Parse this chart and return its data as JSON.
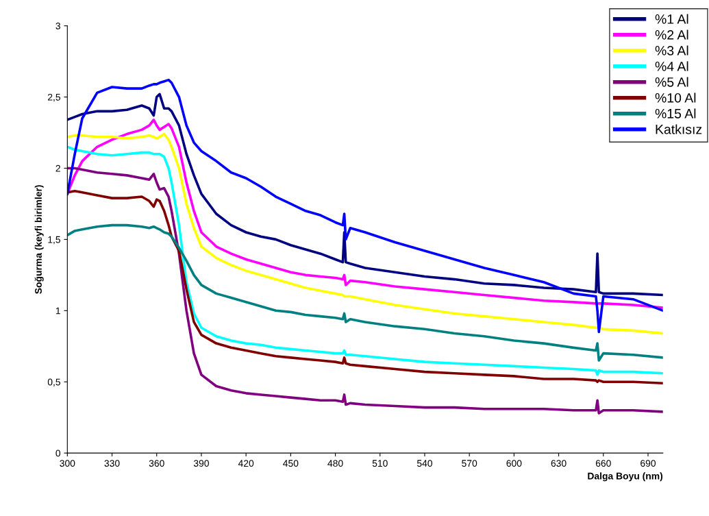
{
  "chart_data": {
    "type": "line",
    "xlabel": "Dalga Boyu (nm)",
    "ylabel": "Soğurma (keyfi birimler)",
    "x": [
      300,
      305,
      310,
      320,
      330,
      340,
      350,
      355,
      358,
      360,
      362,
      365,
      368,
      370,
      375,
      380,
      385,
      390,
      400,
      410,
      420,
      430,
      440,
      450,
      460,
      470,
      480,
      485,
      486,
      487,
      490,
      500,
      520,
      540,
      560,
      580,
      600,
      620,
      640,
      655,
      656,
      657,
      660,
      680,
      700
    ],
    "series": [
      {
        "name": "%1 Al",
        "color": "#000080",
        "values": [
          2.34,
          2.36,
          2.38,
          2.4,
          2.4,
          2.41,
          2.44,
          2.42,
          2.37,
          2.5,
          2.52,
          2.42,
          2.42,
          2.4,
          2.3,
          2.1,
          1.95,
          1.82,
          1.68,
          1.6,
          1.55,
          1.52,
          1.5,
          1.46,
          1.43,
          1.4,
          1.36,
          1.34,
          1.55,
          1.34,
          1.33,
          1.3,
          1.27,
          1.24,
          1.22,
          1.19,
          1.18,
          1.16,
          1.15,
          1.13,
          1.4,
          1.13,
          1.12,
          1.12,
          1.11
        ]
      },
      {
        "name": "%2 Al",
        "color": "#ff00ff",
        "values": [
          1.82,
          1.95,
          2.05,
          2.15,
          2.2,
          2.24,
          2.27,
          2.3,
          2.34,
          2.3,
          2.27,
          2.29,
          2.31,
          2.28,
          2.15,
          1.9,
          1.7,
          1.55,
          1.45,
          1.4,
          1.36,
          1.33,
          1.3,
          1.27,
          1.25,
          1.24,
          1.23,
          1.22,
          1.25,
          1.18,
          1.21,
          1.2,
          1.17,
          1.15,
          1.13,
          1.11,
          1.09,
          1.07,
          1.06,
          1.05,
          1.05,
          1.05,
          1.05,
          1.04,
          1.02
        ]
      },
      {
        "name": "%3 Al",
        "color": "#ffff00",
        "values": [
          2.22,
          2.23,
          2.23,
          2.22,
          2.22,
          2.21,
          2.22,
          2.23,
          2.22,
          2.21,
          2.22,
          2.24,
          2.2,
          2.15,
          2.0,
          1.75,
          1.58,
          1.45,
          1.37,
          1.32,
          1.28,
          1.25,
          1.22,
          1.19,
          1.16,
          1.14,
          1.12,
          1.11,
          1.1,
          1.1,
          1.1,
          1.08,
          1.04,
          1.01,
          0.98,
          0.96,
          0.94,
          0.92,
          0.9,
          0.88,
          0.88,
          0.88,
          0.87,
          0.86,
          0.84
        ]
      },
      {
        "name": "%4 Al",
        "color": "#00ffff",
        "values": [
          2.15,
          2.13,
          2.12,
          2.1,
          2.09,
          2.1,
          2.11,
          2.11,
          2.1,
          2.1,
          2.1,
          2.08,
          2.0,
          1.9,
          1.6,
          1.2,
          0.98,
          0.88,
          0.82,
          0.79,
          0.77,
          0.76,
          0.74,
          0.73,
          0.72,
          0.71,
          0.7,
          0.7,
          0.72,
          0.69,
          0.69,
          0.68,
          0.66,
          0.64,
          0.63,
          0.62,
          0.61,
          0.6,
          0.59,
          0.58,
          0.55,
          0.58,
          0.57,
          0.57,
          0.56
        ]
      },
      {
        "name": "%5 Al",
        "color": "#800080",
        "values": [
          2.0,
          2.0,
          1.99,
          1.97,
          1.96,
          1.95,
          1.93,
          1.92,
          1.96,
          1.9,
          1.85,
          1.86,
          1.8,
          1.7,
          1.4,
          1.0,
          0.7,
          0.55,
          0.47,
          0.44,
          0.42,
          0.41,
          0.4,
          0.39,
          0.38,
          0.37,
          0.37,
          0.36,
          0.41,
          0.34,
          0.35,
          0.34,
          0.33,
          0.32,
          0.32,
          0.31,
          0.31,
          0.31,
          0.3,
          0.3,
          0.37,
          0.28,
          0.3,
          0.3,
          0.29
        ]
      },
      {
        "name": "%10 Al",
        "color": "#800000",
        "values": [
          1.83,
          1.84,
          1.83,
          1.81,
          1.79,
          1.79,
          1.8,
          1.77,
          1.73,
          1.78,
          1.77,
          1.7,
          1.6,
          1.52,
          1.42,
          1.15,
          0.92,
          0.83,
          0.77,
          0.74,
          0.72,
          0.7,
          0.68,
          0.67,
          0.66,
          0.65,
          0.64,
          0.63,
          0.67,
          0.63,
          0.62,
          0.61,
          0.59,
          0.57,
          0.56,
          0.55,
          0.54,
          0.52,
          0.52,
          0.51,
          0.5,
          0.51,
          0.5,
          0.5,
          0.49
        ]
      },
      {
        "name": "%15 Al",
        "color": "#008080",
        "values": [
          1.53,
          1.56,
          1.57,
          1.59,
          1.6,
          1.6,
          1.59,
          1.58,
          1.59,
          1.58,
          1.57,
          1.55,
          1.54,
          1.52,
          1.44,
          1.35,
          1.25,
          1.18,
          1.12,
          1.09,
          1.06,
          1.03,
          1.0,
          0.99,
          0.97,
          0.96,
          0.95,
          0.94,
          0.98,
          0.92,
          0.94,
          0.92,
          0.89,
          0.87,
          0.84,
          0.82,
          0.79,
          0.77,
          0.74,
          0.72,
          0.77,
          0.65,
          0.7,
          0.69,
          0.67
        ]
      },
      {
        "name": "Katkısız",
        "color": "#0000ff",
        "values": [
          1.82,
          2.1,
          2.35,
          2.53,
          2.57,
          2.56,
          2.56,
          2.58,
          2.59,
          2.59,
          2.6,
          2.61,
          2.62,
          2.6,
          2.5,
          2.3,
          2.18,
          2.12,
          2.05,
          1.97,
          1.93,
          1.87,
          1.8,
          1.75,
          1.7,
          1.67,
          1.62,
          1.6,
          1.68,
          1.5,
          1.58,
          1.55,
          1.48,
          1.42,
          1.36,
          1.3,
          1.25,
          1.2,
          1.12,
          1.1,
          1.0,
          0.85,
          1.1,
          1.08,
          1.0
        ]
      }
    ],
    "xlim": [
      300,
      700
    ],
    "xticks": [
      300,
      330,
      360,
      390,
      420,
      450,
      480,
      510,
      540,
      570,
      600,
      630,
      660,
      690
    ],
    "ylim": [
      0,
      3
    ],
    "yticks": [
      0,
      {
        "value": 0.5,
        "label": "0,5"
      },
      1,
      {
        "value": 1.5,
        "label": "1,5"
      },
      2,
      {
        "value": 2.5,
        "label": "2,5"
      },
      3
    ],
    "grid": false,
    "legend": "top right",
    "marker": "none",
    "line_style": "solid"
  }
}
